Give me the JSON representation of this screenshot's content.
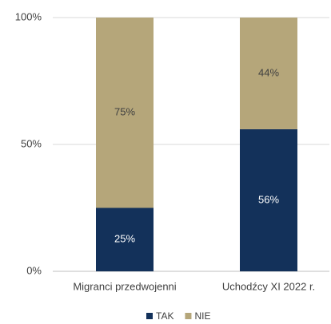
{
  "chart_data": {
    "type": "stacked_bar",
    "categories": [
      "Migranci przedwojenni",
      "Uchodźcy XI 2022 r."
    ],
    "series": [
      {
        "name": "TAK",
        "color": "#13315a",
        "values": [
          25,
          56
        ],
        "value_labels": [
          "25%",
          "56%"
        ]
      },
      {
        "name": "NIE",
        "color": "#b5a67a",
        "values": [
          75,
          44
        ],
        "value_labels": [
          "75%",
          "44%"
        ]
      }
    ],
    "ylim": [
      0,
      100
    ],
    "yticks": [
      {
        "value": 0,
        "label": "0%"
      },
      {
        "value": 50,
        "label": "50%"
      },
      {
        "value": 100,
        "label": "100%"
      }
    ],
    "grid": true,
    "legend": "bottom"
  }
}
